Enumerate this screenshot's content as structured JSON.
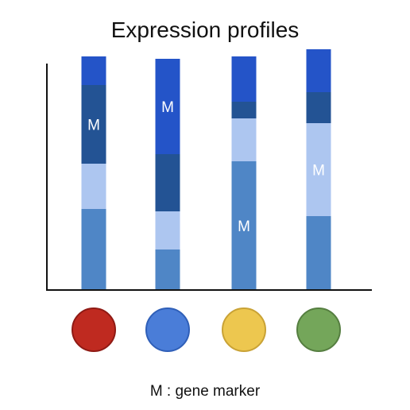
{
  "title": "Expression profiles",
  "legend": "M : gene marker",
  "marker_label": "M",
  "colors": {
    "top": "#2454c8",
    "dark": "#235394",
    "light": "#adc6f0",
    "base": "#4f86c6",
    "axis": "#111111"
  },
  "chart_data": {
    "type": "bar",
    "stacked": true,
    "ylim": [
      0,
      100
    ],
    "segment_order": [
      "base",
      "light",
      "dark",
      "top"
    ],
    "bars": [
      {
        "circle_color": "#bf2a20",
        "circle_stroke": "#8f1a14",
        "segments": {
          "base": 34,
          "light": 19,
          "dark": 33,
          "top": 12
        },
        "marker": "dark"
      },
      {
        "circle_color": "#4a7dd8",
        "circle_stroke": "#2f5fb8",
        "segments": {
          "base": 17,
          "light": 16,
          "dark": 24,
          "top": 40
        },
        "marker": "top"
      },
      {
        "circle_color": "#edc74f",
        "circle_stroke": "#c9a235",
        "segments": {
          "base": 54,
          "light": 18,
          "dark": 7,
          "top": 19
        },
        "marker": "base"
      },
      {
        "circle_color": "#74a65a",
        "circle_stroke": "#557e40",
        "segments": {
          "base": 31,
          "light": 39,
          "dark": 13,
          "top": 18
        },
        "marker": "light"
      }
    ]
  }
}
